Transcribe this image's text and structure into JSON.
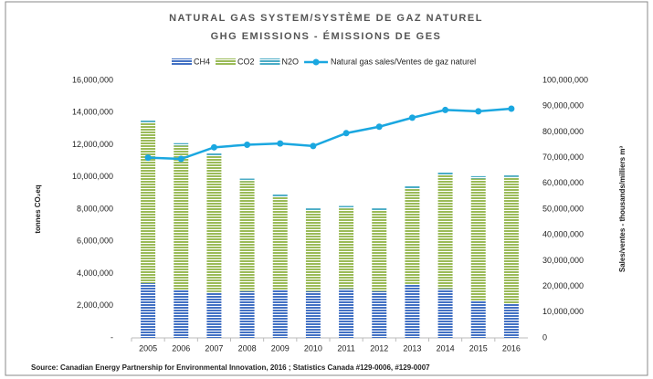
{
  "chart_data": {
    "type": "bar",
    "title": "NATURAL GAS SYSTEM/SYSTÈME DE GAZ NATUREL",
    "subtitle": "GHG EMISSIONS - ÉMISSIONS DE GES",
    "ylabel": "tonnes CO₂eq",
    "y2label": "Sales/ventes - thousands/milliers m³",
    "source": "Source: Canadian Energy Partnership for Environmental Innovation, 2016 ; Statistics Canada #129-0006, #129-0007",
    "categories": [
      "2005",
      "2006",
      "2007",
      "2008",
      "2009",
      "2010",
      "2011",
      "2012",
      "2013",
      "2014",
      "2015",
      "2016"
    ],
    "series": [
      {
        "name": "CH4",
        "color": "#4472c4",
        "values": [
          3400000,
          2950000,
          2850000,
          2900000,
          3000000,
          2900000,
          3050000,
          2900000,
          3350000,
          3050000,
          2300000,
          2150000
        ]
      },
      {
        "name": "CO2",
        "color": "#9bbb59",
        "values": [
          10000000,
          9000000,
          8500000,
          6850000,
          5800000,
          5000000,
          5000000,
          5000000,
          5950000,
          7100000,
          7600000,
          7850000
        ]
      },
      {
        "name": "N2O",
        "color": "#4bacc6",
        "values": [
          150000,
          150000,
          150000,
          150000,
          150000,
          150000,
          150000,
          150000,
          150000,
          150000,
          150000,
          150000
        ]
      },
      {
        "name": "Natural gas sales/Ventes de gaz naturel",
        "color": "#1aa7e0",
        "type": "line",
        "axis": "y2",
        "values": [
          70000000,
          69500000,
          74000000,
          75000000,
          75500000,
          74500000,
          79500000,
          82000000,
          85500000,
          88500000,
          88000000,
          89000000
        ]
      }
    ],
    "ylim": [
      0,
      16000000
    ],
    "yticks": [
      {
        "value": 0,
        "label": "-"
      },
      {
        "value": 2000000,
        "label": "2,000,000"
      },
      {
        "value": 4000000,
        "label": "4,000,000"
      },
      {
        "value": 6000000,
        "label": "6,000,000"
      },
      {
        "value": 8000000,
        "label": "8,000,000"
      },
      {
        "value": 10000000,
        "label": "10,000,000"
      },
      {
        "value": 12000000,
        "label": "12,000,000"
      },
      {
        "value": 14000000,
        "label": "14,000,000"
      },
      {
        "value": 16000000,
        "label": "16,000,000"
      }
    ],
    "y2lim": [
      0,
      100000000
    ],
    "y2ticks": [
      0,
      {
        "value": 10000000,
        "label": "10,000,000"
      },
      {
        "value": 20000000,
        "label": "20,000,000"
      },
      {
        "value": 30000000,
        "label": "30,000,000"
      },
      {
        "value": 40000000,
        "label": "40,000,000"
      },
      {
        "value": 50000000,
        "label": "50,000,000"
      },
      {
        "value": 60000000,
        "label": "60,000,000"
      },
      {
        "value": 70000000,
        "label": "70,000,000"
      },
      {
        "value": 80000000,
        "label": "80,000,000"
      },
      {
        "value": 90000000,
        "label": "90,000,000"
      },
      {
        "value": 100000000,
        "label": "100,000,000"
      }
    ],
    "grid": false,
    "stacked": true
  }
}
